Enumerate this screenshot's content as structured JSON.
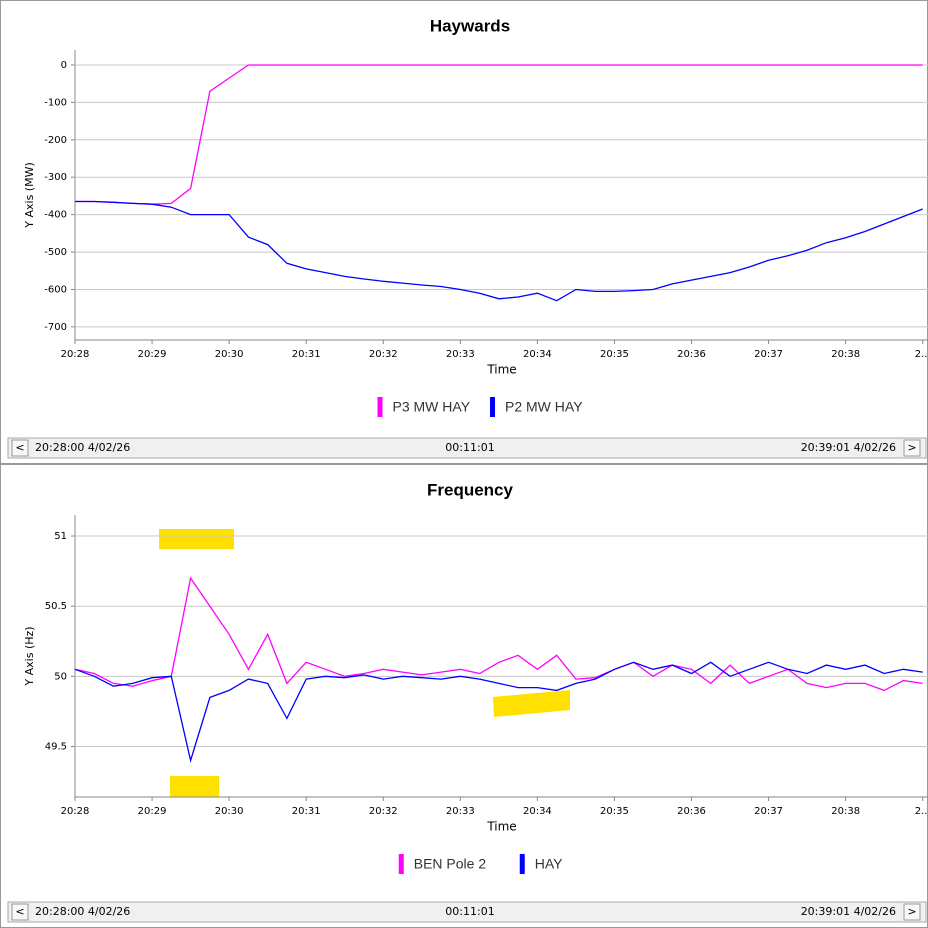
{
  "chart_data": [
    {
      "type": "line",
      "title": "Haywards",
      "x_label": "Time",
      "y_label": "Y Axis (MW)",
      "x": [
        "20:28:00",
        "20:28:15",
        "20:28:30",
        "20:28:45",
        "20:29:00",
        "20:29:15",
        "20:29:30",
        "20:29:45",
        "20:30:00",
        "20:30:15",
        "20:30:30",
        "20:30:45",
        "20:31:00",
        "20:31:15",
        "20:31:30",
        "20:31:45",
        "20:32:00",
        "20:32:15",
        "20:32:30",
        "20:32:45",
        "20:33:00",
        "20:33:15",
        "20:33:30",
        "20:33:45",
        "20:34:00",
        "20:34:15",
        "20:34:30",
        "20:34:45",
        "20:35:00",
        "20:35:15",
        "20:35:30",
        "20:35:45",
        "20:36:00",
        "20:36:15",
        "20:36:30",
        "20:36:45",
        "20:37:00",
        "20:37:15",
        "20:37:30",
        "20:37:45",
        "20:38:00",
        "20:38:15",
        "20:38:30",
        "20:38:45",
        "20:39:00"
      ],
      "series": [
        {
          "name": "P3 MW HAY",
          "color": "#ff00ff",
          "values": [
            -365,
            -365,
            -367,
            -370,
            -372,
            -370,
            -330,
            -70,
            -35,
            0,
            0,
            0,
            0,
            0,
            0,
            0,
            0,
            0,
            0,
            0,
            0,
            0,
            0,
            0,
            0,
            0,
            0,
            0,
            0,
            0,
            0,
            0,
            0,
            0,
            0,
            0,
            0,
            0,
            0,
            0,
            0,
            0,
            0,
            0,
            0
          ]
        },
        {
          "name": "P2 MW HAY",
          "color": "#0000ff",
          "values": [
            -365,
            -365,
            -367,
            -370,
            -372,
            -380,
            -400,
            -400,
            -400,
            -460,
            -480,
            -530,
            -545,
            -555,
            -565,
            -572,
            -578,
            -583,
            -588,
            -592,
            -600,
            -610,
            -625,
            -620,
            -610,
            -630,
            -600,
            -605,
            -605,
            -603,
            -600,
            -585,
            -575,
            -565,
            -555,
            -540,
            -522,
            -510,
            -495,
            -475,
            -462,
            -445,
            -425,
            -405,
            -385
          ]
        }
      ],
      "xlim": [
        "20:28:00",
        "20:39:01"
      ],
      "xticks": [
        {
          "value": "20:28:00",
          "label": "20:28"
        },
        {
          "value": "20:29:00",
          "label": "20:29"
        },
        {
          "value": "20:30:00",
          "label": "20:30"
        },
        {
          "value": "20:31:00",
          "label": "20:31"
        },
        {
          "value": "20:32:00",
          "label": "20:32"
        },
        {
          "value": "20:33:00",
          "label": "20:33"
        },
        {
          "value": "20:34:00",
          "label": "20:34"
        },
        {
          "value": "20:35:00",
          "label": "20:35"
        },
        {
          "value": "20:36:00",
          "label": "20:36"
        },
        {
          "value": "20:37:00",
          "label": "20:37"
        },
        {
          "value": "20:38:00",
          "label": "20:38"
        },
        {
          "value": "20:39:00",
          "label": "2..."
        }
      ],
      "ylim": [
        -735,
        40
      ],
      "yticks": [
        -700,
        -600,
        -500,
        -400,
        -300,
        -200,
        -100,
        0
      ],
      "grid": true,
      "navigator": {
        "prev": "<",
        "start": "20:28:00 4/02/26",
        "span": "00:11:01",
        "end": "20:39:01 4/02/26",
        "next": ">"
      }
    },
    {
      "type": "line",
      "title": "Frequency",
      "x_label": "Time",
      "y_label": "Y Axis (Hz)",
      "x": [
        "20:28:00",
        "20:28:15",
        "20:28:30",
        "20:28:45",
        "20:29:00",
        "20:29:15",
        "20:29:30",
        "20:29:45",
        "20:30:00",
        "20:30:15",
        "20:30:30",
        "20:30:45",
        "20:31:00",
        "20:31:15",
        "20:31:30",
        "20:31:45",
        "20:32:00",
        "20:32:15",
        "20:32:30",
        "20:32:45",
        "20:33:00",
        "20:33:15",
        "20:33:30",
        "20:33:45",
        "20:34:00",
        "20:34:15",
        "20:34:30",
        "20:34:45",
        "20:35:00",
        "20:35:15",
        "20:35:30",
        "20:35:45",
        "20:36:00",
        "20:36:15",
        "20:36:30",
        "20:36:45",
        "20:37:00",
        "20:37:15",
        "20:37:30",
        "20:37:45",
        "20:38:00",
        "20:38:15",
        "20:38:30",
        "20:38:45",
        "20:39:00"
      ],
      "series": [
        {
          "name": "BEN Pole 2",
          "color": "#ff00ff",
          "values": [
            50.05,
            50.02,
            49.95,
            49.93,
            49.97,
            50.0,
            50.7,
            50.5,
            50.3,
            50.05,
            50.3,
            49.95,
            50.1,
            50.05,
            50.0,
            50.02,
            50.05,
            50.03,
            50.01,
            50.03,
            50.05,
            50.02,
            50.1,
            50.15,
            50.05,
            50.15,
            49.98,
            49.99,
            50.05,
            50.1,
            50.0,
            50.08,
            50.05,
            49.95,
            50.08,
            49.95,
            50.0,
            50.05,
            49.95,
            49.92,
            49.95,
            49.95,
            49.9,
            49.97,
            49.95
          ]
        },
        {
          "name": "HAY",
          "color": "#0000ff",
          "values": [
            50.05,
            50.0,
            49.93,
            49.95,
            49.99,
            50.0,
            49.4,
            49.85,
            49.9,
            49.98,
            49.95,
            49.7,
            49.98,
            50.0,
            49.99,
            50.01,
            49.98,
            50.0,
            49.99,
            49.98,
            50.0,
            49.98,
            49.95,
            49.92,
            49.92,
            49.9,
            49.95,
            49.98,
            50.05,
            50.1,
            50.05,
            50.08,
            50.02,
            50.1,
            50.0,
            50.05,
            50.1,
            50.05,
            50.02,
            50.08,
            50.05,
            50.08,
            50.02,
            50.05,
            50.03
          ]
        }
      ],
      "xlim": [
        "20:28:00",
        "20:39:01"
      ],
      "xticks": [
        {
          "value": "20:28:00",
          "label": "20:28"
        },
        {
          "value": "20:29:00",
          "label": "20:29"
        },
        {
          "value": "20:30:00",
          "label": "20:30"
        },
        {
          "value": "20:31:00",
          "label": "20:31"
        },
        {
          "value": "20:32:00",
          "label": "20:32"
        },
        {
          "value": "20:33:00",
          "label": "20:33"
        },
        {
          "value": "20:34:00",
          "label": "20:34"
        },
        {
          "value": "20:35:00",
          "label": "20:35"
        },
        {
          "value": "20:36:00",
          "label": "20:36"
        },
        {
          "value": "20:37:00",
          "label": "20:37"
        },
        {
          "value": "20:38:00",
          "label": "20:38"
        },
        {
          "value": "20:39:00",
          "label": "2..."
        }
      ],
      "ylim": [
        49.14,
        51.15
      ],
      "yticks": [
        49.5,
        50,
        50.5,
        51
      ],
      "grid": true,
      "navigator": {
        "prev": "<",
        "start": "20:28:00 4/02/26",
        "span": "00:11:01",
        "end": "20:39:01 4/02/26",
        "next": ">"
      }
    }
  ]
}
